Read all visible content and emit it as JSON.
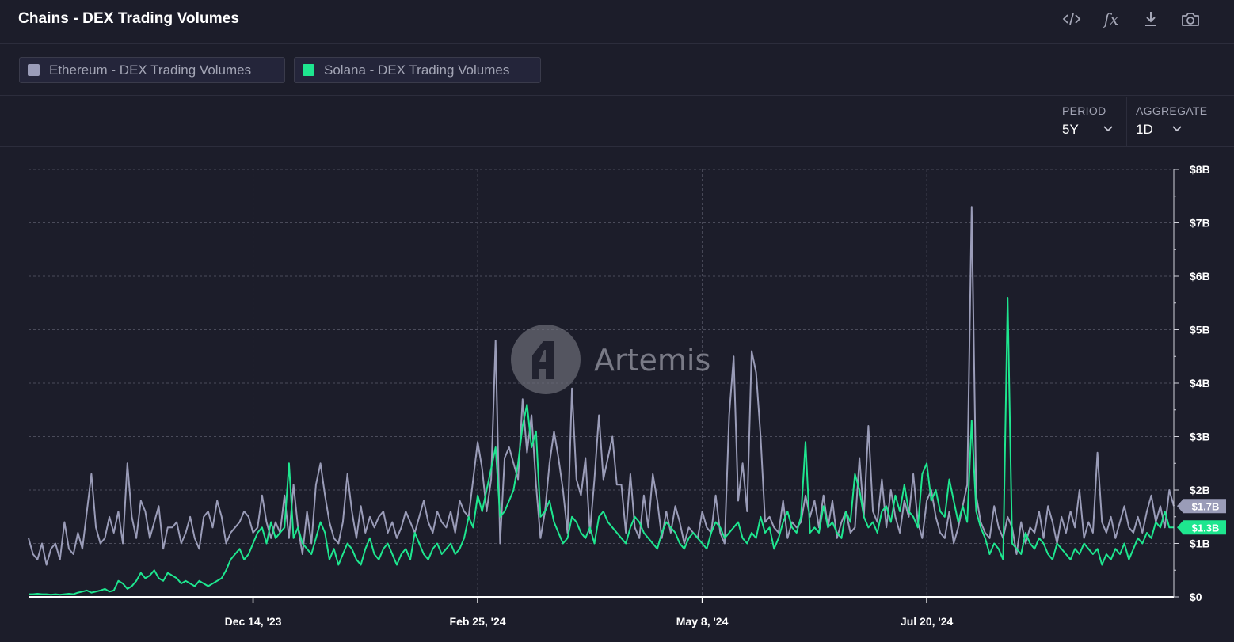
{
  "header": {
    "title": "Chains - DEX Trading Volumes",
    "tools": {
      "embed": "code-icon",
      "formula": "fx",
      "download": "download-icon",
      "screenshot": "camera-icon"
    }
  },
  "legend": [
    {
      "label": "Ethereum - DEX Trading Volumes",
      "color": "#9a9cb8"
    },
    {
      "label": "Solana - DEX Trading Volumes",
      "color": "#1ee68f"
    }
  ],
  "controls": {
    "period": {
      "label": "PERIOD",
      "value": "5Y"
    },
    "aggregate": {
      "label": "AGGREGATE",
      "value": "1D"
    }
  },
  "watermark": "Artemis",
  "chart_data": {
    "type": "line",
    "title": "Chains - DEX Trading Volumes",
    "x_tick_labels": [
      "Dec 14, '23",
      "Feb 25, '24",
      "May 8, '24",
      "Jul 20, '24"
    ],
    "x_tick_index": [
      50,
      100,
      150,
      200
    ],
    "y_tick_labels": [
      "$0",
      "$1B",
      "$2B",
      "$3B",
      "$4B",
      "$5B",
      "$6B",
      "$7B",
      "$8B"
    ],
    "y_unit": "B USD",
    "ylim": [
      0,
      8
    ],
    "grid": true,
    "series": [
      {
        "name": "Ethereum - DEX Trading Volumes",
        "color": "#9a9cb8",
        "last_value_label": "$1.7B",
        "values": [
          1.1,
          0.8,
          0.7,
          1.0,
          0.6,
          0.9,
          1.0,
          0.7,
          1.4,
          0.9,
          0.8,
          1.2,
          0.9,
          1.6,
          2.3,
          1.3,
          1.0,
          1.1,
          1.5,
          1.2,
          1.6,
          1.0,
          2.5,
          1.5,
          1.1,
          1.8,
          1.6,
          1.1,
          1.4,
          1.7,
          0.9,
          1.3,
          1.3,
          1.4,
          1.0,
          1.2,
          1.5,
          1.1,
          0.9,
          1.5,
          1.6,
          1.3,
          1.8,
          1.5,
          1.0,
          1.2,
          1.3,
          1.4,
          1.6,
          1.5,
          1.2,
          1.3,
          1.9,
          1.4,
          1.1,
          1.4,
          1.2,
          1.9,
          1.1,
          2.1,
          1.3,
          0.8,
          1.6,
          1.0,
          2.1,
          2.5,
          1.9,
          1.4,
          1.1,
          1.0,
          1.4,
          2.3,
          1.6,
          1.1,
          1.7,
          1.2,
          1.5,
          1.3,
          1.5,
          1.6,
          1.2,
          1.4,
          1.1,
          1.3,
          1.6,
          1.4,
          1.2,
          1.5,
          1.8,
          1.4,
          1.2,
          1.6,
          1.4,
          1.3,
          1.6,
          1.2,
          1.8,
          1.6,
          1.5,
          2.2,
          2.9,
          2.4,
          1.6,
          2.2,
          4.8,
          1.0,
          2.6,
          2.8,
          2.5,
          2.2,
          3.7,
          2.7,
          3.4,
          2.1,
          1.1,
          1.6,
          2.5,
          3.1,
          2.6,
          2.0,
          1.2,
          3.9,
          2.2,
          1.9,
          2.6,
          1.2,
          2.2,
          3.4,
          2.2,
          2.6,
          3.0,
          2.1,
          2.1,
          1.2,
          2.3,
          1.3,
          1.1,
          1.9,
          1.3,
          2.3,
          1.8,
          1.1,
          1.6,
          1.2,
          1.7,
          1.4,
          1.0,
          1.3,
          1.2,
          1.1,
          1.6,
          1.3,
          1.2,
          1.9,
          1.2,
          1.0,
          3.4,
          4.5,
          1.8,
          2.5,
          1.6,
          4.6,
          4.2,
          3.0,
          1.4,
          1.5,
          1.3,
          1.2,
          1.8,
          1.1,
          1.4,
          1.3,
          1.4,
          1.9,
          1.5,
          1.8,
          1.3,
          1.9,
          1.3,
          1.8,
          1.1,
          1.4,
          1.6,
          1.2,
          1.3,
          2.6,
          1.5,
          3.2,
          1.6,
          1.4,
          2.2,
          1.3,
          2.0,
          1.5,
          1.2,
          1.8,
          1.5,
          2.3,
          1.4,
          1.1,
          1.8,
          2.0,
          1.5,
          1.2,
          1.1,
          1.6,
          1.0,
          1.3,
          1.7,
          2.1,
          7.3,
          1.9,
          1.4,
          1.2,
          1.1,
          1.7,
          1.3,
          1.1,
          1.5,
          1.3,
          0.8,
          1.4,
          1.0,
          1.3,
          1.2,
          1.6,
          1.1,
          1.7,
          1.4,
          1.0,
          1.5,
          1.2,
          1.6,
          1.3,
          2.0,
          1.1,
          1.4,
          1.2,
          2.7,
          1.4,
          1.2,
          1.5,
          1.1,
          1.4,
          1.7,
          1.3,
          1.2,
          1.5,
          1.2,
          1.6,
          1.9,
          1.4,
          1.7,
          1.3,
          2.0,
          1.7
        ]
      },
      {
        "name": "Solana - DEX Trading Volumes",
        "color": "#1ee68f",
        "last_value_label": "$1.3B",
        "values": [
          0.05,
          0.05,
          0.06,
          0.05,
          0.05,
          0.04,
          0.05,
          0.04,
          0.05,
          0.06,
          0.05,
          0.08,
          0.1,
          0.12,
          0.08,
          0.1,
          0.12,
          0.15,
          0.1,
          0.12,
          0.3,
          0.25,
          0.15,
          0.2,
          0.3,
          0.45,
          0.35,
          0.4,
          0.5,
          0.35,
          0.3,
          0.45,
          0.4,
          0.35,
          0.25,
          0.3,
          0.25,
          0.2,
          0.3,
          0.25,
          0.2,
          0.25,
          0.3,
          0.35,
          0.5,
          0.7,
          0.8,
          0.9,
          0.7,
          0.8,
          1.0,
          1.2,
          1.3,
          1.0,
          1.4,
          1.1,
          1.2,
          1.3,
          2.5,
          1.1,
          1.3,
          1.0,
          0.9,
          0.8,
          1.1,
          1.4,
          1.2,
          0.7,
          0.9,
          0.6,
          0.8,
          1.0,
          0.9,
          0.7,
          0.6,
          0.9,
          1.1,
          0.8,
          0.7,
          0.9,
          1.0,
          0.8,
          0.6,
          0.8,
          0.9,
          0.7,
          1.2,
          1.0,
          0.8,
          0.7,
          0.9,
          1.0,
          0.8,
          0.9,
          1.0,
          0.8,
          0.9,
          1.1,
          1.5,
          1.3,
          1.9,
          1.6,
          2.0,
          2.4,
          2.8,
          1.5,
          1.6,
          1.8,
          2.0,
          2.5,
          3.2,
          3.6,
          2.8,
          3.1,
          1.5,
          1.6,
          1.8,
          1.4,
          1.2,
          1.0,
          1.1,
          1.5,
          1.4,
          1.2,
          1.1,
          1.3,
          1.0,
          1.5,
          1.6,
          1.4,
          1.3,
          1.2,
          1.1,
          1.0,
          1.3,
          1.5,
          1.4,
          1.2,
          1.1,
          1.0,
          0.9,
          1.2,
          1.4,
          1.3,
          1.2,
          1.0,
          0.9,
          1.1,
          1.2,
          1.1,
          1.0,
          0.9,
          1.2,
          1.4,
          1.3,
          1.1,
          1.2,
          1.3,
          1.4,
          1.1,
          1.0,
          1.2,
          1.1,
          1.5,
          1.2,
          1.3,
          0.9,
          1.1,
          1.4,
          1.6,
          1.3,
          1.2,
          1.5,
          2.9,
          1.2,
          1.3,
          1.2,
          1.7,
          1.3,
          1.4,
          1.2,
          1.1,
          1.6,
          1.4,
          2.3,
          2.0,
          1.5,
          1.3,
          1.4,
          1.2,
          1.6,
          1.7,
          1.4,
          1.9,
          1.6,
          2.1,
          1.6,
          1.5,
          1.3,
          2.3,
          2.5,
          1.8,
          2.0,
          1.6,
          1.5,
          2.2,
          1.8,
          1.4,
          1.7,
          1.4,
          3.3,
          1.6,
          1.3,
          1.1,
          0.8,
          1.0,
          0.9,
          0.7,
          5.6,
          1.0,
          0.9,
          0.8,
          1.2,
          1.0,
          0.9,
          1.1,
          1.0,
          0.8,
          0.7,
          1.0,
          0.9,
          0.8,
          0.7,
          0.9,
          0.8,
          1.0,
          0.9,
          0.8,
          0.9,
          0.6,
          0.8,
          0.7,
          0.9,
          0.8,
          1.0,
          0.7,
          0.9,
          1.1,
          1.0,
          1.2,
          1.1,
          1.4,
          1.3,
          1.6,
          1.3,
          1.3
        ]
      }
    ]
  }
}
